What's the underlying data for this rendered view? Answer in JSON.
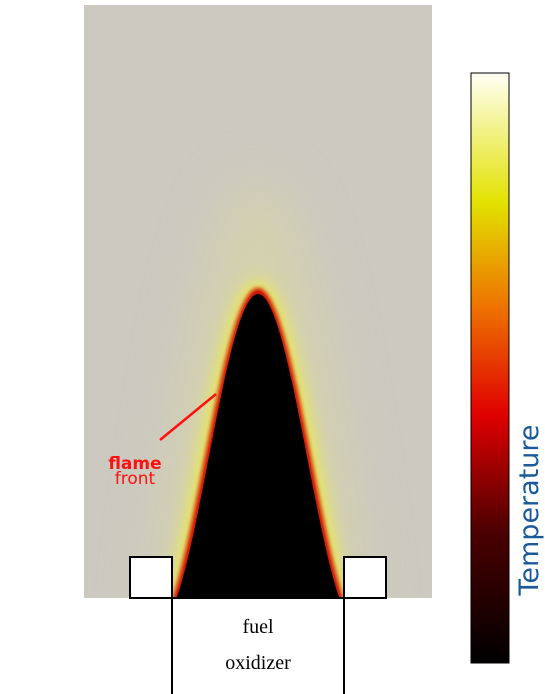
{
  "flame_label": {
    "line1": "flame",
    "line2": "front"
  },
  "inlet": {
    "fuel": "fuel",
    "oxidizer": "oxidizer"
  },
  "colorbar": {
    "label": "Temperature"
  }
}
